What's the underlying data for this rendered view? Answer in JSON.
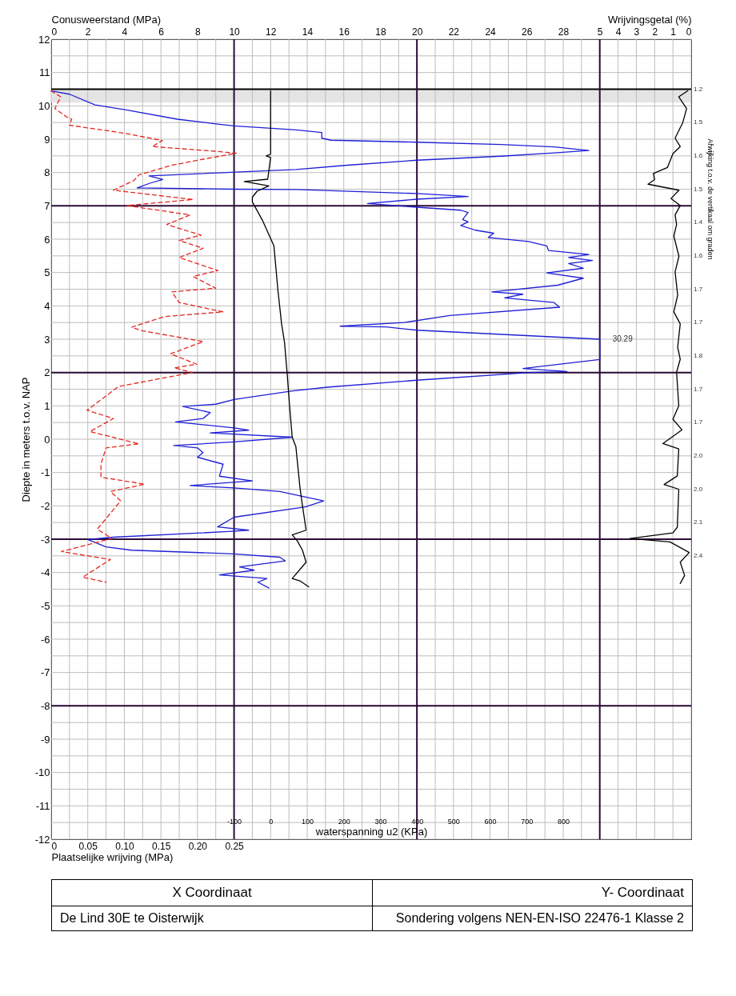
{
  "chart_data": [
    {
      "type": "line",
      "xlabel": "Conusweerstand (MPa)",
      "x2label": "Wrijvingsgetal (%)",
      "ylabel": "Diepte in meters t.o.v. NAP",
      "xlim": [
        0,
        35
      ],
      "xticks": [
        0,
        {
          "value": 1,
          "label": null
        },
        2,
        {
          "value": 3,
          "label": null
        },
        4,
        {
          "value": 5,
          "label": null
        },
        6,
        {
          "value": 7,
          "label": null
        },
        8,
        {
          "value": 9,
          "label": null
        },
        10,
        {
          "value": 11,
          "label": null
        },
        12,
        {
          "value": 13,
          "label": null
        },
        14,
        {
          "value": 15,
          "label": null
        },
        16,
        {
          "value": 17,
          "label": null
        },
        18,
        {
          "value": 19,
          "label": null
        },
        20,
        {
          "value": 21,
          "label": null
        },
        22,
        {
          "value": 23,
          "label": null
        },
        24,
        {
          "value": 25,
          "label": null
        },
        26,
        {
          "value": 27,
          "label": null
        },
        28,
        {
          "value": 29,
          "label": null
        },
        {
          "value": 30,
          "label": null
        },
        {
          "value": 31,
          "label": null
        },
        {
          "value": 32,
          "label": null
        },
        {
          "value": 33,
          "label": null
        },
        {
          "value": 34,
          "label": null
        },
        {
          "value": 35,
          "label": null
        }
      ],
      "x2lim": [
        35,
        0
      ],
      "x2ticks": [
        5,
        4,
        3,
        2,
        1,
        0
      ],
      "ylim": [
        -12,
        12
      ],
      "yticks": [
        12,
        {
          "value": 11.5,
          "label": null
        },
        11,
        {
          "value": 10.5,
          "label": null
        },
        10,
        {
          "value": 9.5,
          "label": null
        },
        9,
        {
          "value": 8.5,
          "label": null
        },
        8,
        {
          "value": 7.5,
          "label": null
        },
        7,
        {
          "value": 6.5,
          "label": null
        },
        6,
        {
          "value": 5.5,
          "label": null
        },
        5,
        {
          "value": 4.5,
          "label": null
        },
        4,
        {
          "value": 3.5,
          "label": null
        },
        3,
        {
          "value": 2.5,
          "label": null
        },
        2,
        {
          "value": 1.5,
          "label": null
        },
        1,
        {
          "value": 0.5,
          "label": null
        },
        0,
        {
          "value": -0.5,
          "label": null
        },
        -1,
        {
          "value": -1.5,
          "label": null
        },
        -2,
        {
          "value": -2.5,
          "label": null
        },
        -3,
        {
          "value": -3.5,
          "label": null
        },
        -4,
        {
          "value": -4.5,
          "label": null
        },
        -5,
        {
          "value": -5.5,
          "label": null
        },
        -6,
        {
          "value": -6.5,
          "label": null
        },
        -7,
        {
          "value": -7.5,
          "label": null
        },
        -8,
        {
          "value": -8.5,
          "label": null
        },
        -9,
        {
          "value": -9.5,
          "label": null
        },
        -10,
        {
          "value": -10.5,
          "label": null
        },
        -11,
        {
          "value": -11.5,
          "label": null
        },
        -12
      ],
      "grid": true,
      "series": [
        {
          "color": "#1f1fd6",
          "x": [
            0,
            1.0,
            2.4,
            4.1,
            6.9,
            9.0,
            10.0,
            13.4,
            14.8,
            14.8,
            15.3,
            20,
            24.6,
            27.5,
            29.4,
            27.5,
            24.6,
            20,
            16.2,
            13.4,
            5.35,
            6.1,
            5.4,
            4.7,
            10.0,
            13.4,
            20,
            22.8,
            20,
            17.3,
            20,
            22.4,
            22.8,
            22.5,
            22.8,
            22.4,
            23.2,
            24.2,
            23.9,
            26.1,
            27.1,
            27.2,
            29.4,
            28.3,
            29.6,
            28.3,
            29.1,
            27.1,
            29.1,
            27.7,
            24.1,
            25.8,
            24.8,
            27.5,
            27.8,
            21.8,
            19.3,
            15.8,
            18.3,
            20,
            30,
            30,
            25.8,
            28.2,
            26.2,
            20,
            15.1,
            13.2,
            10,
            9.0,
            7.2,
            8.7,
            8.3,
            6.8,
            10,
            10.8,
            8.7,
            13.2,
            10,
            6.7,
            8.0,
            8.3,
            8.0,
            9.4,
            9.2,
            11.0,
            7.6,
            10,
            12.5,
            14.9,
            13.9,
            10,
            9.1,
            10.8,
            9.7,
            3.4,
            2.0,
            3.0,
            4.4,
            10,
            12.5,
            12.8,
            10.3,
            11.1,
            9.2,
            11.8,
            11.3,
            11.9
          ],
          "values": [
            10.45,
            10.35,
            10.03,
            9.88,
            9.6,
            9.46,
            9.4,
            9.28,
            9.2,
            9.03,
            8.97,
            8.91,
            8.84,
            8.77,
            8.66,
            8.59,
            8.49,
            8.37,
            8.22,
            8.09,
            7.9,
            7.79,
            7.68,
            7.54,
            7.5,
            7.49,
            7.37,
            7.28,
            7.2,
            7.07,
            6.96,
            6.87,
            6.8,
            6.59,
            6.52,
            6.41,
            6.27,
            6.18,
            6.05,
            5.93,
            5.8,
            5.66,
            5.54,
            5.45,
            5.36,
            5.27,
            5.13,
            4.99,
            4.83,
            4.62,
            4.42,
            4.35,
            4.24,
            4.1,
            3.96,
            3.71,
            3.5,
            3.39,
            3.37,
            3.27,
            3.0,
            2.39,
            2.12,
            2.03,
            2.0,
            1.77,
            1.56,
            1.45,
            1.19,
            1.05,
            0.98,
            0.8,
            0.62,
            0.52,
            0.34,
            0.27,
            0.19,
            0.06,
            -0.08,
            -0.19,
            -0.26,
            -0.4,
            -0.54,
            -0.75,
            -1.11,
            -1.25,
            -1.39,
            -1.46,
            -1.57,
            -1.85,
            -2.03,
            -2.34,
            -2.63,
            -2.73,
            -2.77,
            -2.94,
            -3.01,
            -3.23,
            -3.33,
            -3.44,
            -3.54,
            -3.65,
            -3.83,
            -3.93,
            -4.07,
            -4.18,
            -4.29,
            -4.46
          ]
        },
        {
          "color": "#000000",
          "axis": "x2",
          "x": [
            0.19,
            0.68,
            0.25,
            0.46,
            0.88,
            0.6,
            1.0,
            1.3,
            2.07,
            2.0,
            2.36,
            0.67,
            1.1,
            0.6,
            0.88,
            0.8,
            0.95,
            0.67,
            0.88,
            0.74,
            0.95,
            0.6,
            0.74,
            0.6,
            0.8,
            0.68,
            1.0,
            0.5,
            1.55,
            0.68,
            0.76,
            1.48,
            0.68,
            0.76,
            1.0,
            3.35,
            1.16,
            0.11,
            0.6,
            0.36,
            0.6
          ],
          "values": [
            10.45,
            10.27,
            9.92,
            9.5,
            9.03,
            8.78,
            8.57,
            8.15,
            7.97,
            7.79,
            7.65,
            7.47,
            7.22,
            7.01,
            6.73,
            6.44,
            6.09,
            5.49,
            5.02,
            4.32,
            3.82,
            3.46,
            2.76,
            2.4,
            2.01,
            1.0,
            0.6,
            0.28,
            -0.13,
            -0.29,
            -1.1,
            -1.36,
            -1.5,
            -2.64,
            -2.81,
            -2.98,
            -3.08,
            -3.4,
            -3.69,
            -4.09,
            -4.33
          ]
        }
      ],
      "ref_lines": [
        {
          "axis": "y",
          "value": 10.5,
          "color": "#000000"
        },
        {
          "axis": "x",
          "value": 10,
          "color": "#2a0a33"
        },
        {
          "axis": "x",
          "value": 20,
          "color": "#2b0b35"
        },
        {
          "axis": "x",
          "value": 30,
          "color": "#290932"
        },
        {
          "axis": "y",
          "value": 7,
          "color": "#2c0c36"
        },
        {
          "axis": "y",
          "value": 2,
          "color": "#280831"
        },
        {
          "axis": "y",
          "value": -3,
          "color": "#2d0d37"
        },
        {
          "axis": "y",
          "value": -8,
          "color": "#270730"
        }
      ],
      "bands": [
        {
          "axis": "y",
          "from": 10.1,
          "to": 10.5,
          "color": "#e4e4e4"
        }
      ],
      "annotations": [
        "Afwijking t.o.v. de vertikaal om graden",
        "X Coordinaat",
        "Y- Coordinaat",
        "De Lind 30E te Oisterwijk",
        "Sondering volgens NEN-EN-ISO 22476-1 Klasse 2",
        "1.2",
        "1.5",
        "1.6",
        "1.5",
        "1.4",
        "1.6",
        "1.7",
        "1.7",
        "1.8",
        "1.7",
        "1.7",
        "2.0",
        "2.0",
        "2.1",
        "2.4",
        {
          "text": "30.29",
          "x": 30,
          "y": 3.0
        }
      ]
    },
    {
      "type": "line",
      "xlabel": "waterspanning u2 (KPa)",
      "xlim": [
        -600,
        1150
      ],
      "xticks": [
        -100,
        0,
        100,
        200,
        300,
        400,
        500,
        600,
        700,
        800
      ],
      "ylim": [
        -12,
        12
      ],
      "tick_labels": "x",
      "series": [
        {
          "color": "#000000",
          "x": [
            0,
            0,
            -12,
            0,
            -8,
            -72,
            -5,
            -37,
            -50,
            -50,
            -23,
            9,
            20,
            30,
            38,
            45,
            52,
            59,
            69,
            80,
            87,
            97,
            59,
            73,
            87,
            97,
            59,
            80,
            104
          ],
          "values": [
            10.45,
            8.55,
            8.5,
            8.45,
            7.8,
            7.73,
            7.6,
            7.44,
            7.26,
            7.12,
            6.58,
            5.8,
            4.46,
            3.46,
            2.9,
            2.0,
            0.98,
            0.06,
            -0.22,
            -1.43,
            -1.99,
            -2.73,
            -2.87,
            -3.05,
            -3.33,
            -3.69,
            -4.18,
            -4.25,
            -4.43
          ]
        }
      ]
    },
    {
      "type": "line",
      "xlabel": "Plaatselijke wrijving (MPa)",
      "xlim": [
        0,
        0.875
      ],
      "xticks": [
        0,
        0.05,
        {
          "value": 0.1,
          "label": "0.10"
        },
        0.15,
        {
          "value": 0.2,
          "label": "0.20"
        },
        0.25
      ],
      "ylim": [
        -12,
        12
      ],
      "tick_labels": "x",
      "series": [
        {
          "color": "#e5261f",
          "line_style": "dashed",
          "x": [
            0,
            0.013,
            0.005,
            0.021,
            0.028,
            0.025,
            0.103,
            0.152,
            0.138,
            0.223,
            0.253,
            0.215,
            0.165,
            0.12,
            0.113,
            0.085,
            0.194,
            0.103,
            0.19,
            0.158,
            0.205,
            0.175,
            0.208,
            0.175,
            0.228,
            0.194,
            0.225,
            0.165,
            0.175,
            0.235,
            0.155,
            0.11,
            0.125,
            0.208,
            0.163,
            0.199,
            0.168,
            0.193,
            0.092,
            0.049,
            0.085,
            0.053,
            0.12,
            0.075,
            0.068,
            0.068,
            0.128,
            0.081,
            0.095,
            0.063,
            0.083,
            0.014,
            0.081,
            0.043,
            0.075
          ],
          "values": [
            10.45,
            10.27,
            9.92,
            9.67,
            9.6,
            9.42,
            9.17,
            8.96,
            8.78,
            8.64,
            8.58,
            8.43,
            8.22,
            7.93,
            7.76,
            7.47,
            7.19,
            7.01,
            6.73,
            6.44,
            6.12,
            5.96,
            5.73,
            5.45,
            5.06,
            4.88,
            4.53,
            4.42,
            4.1,
            3.82,
            3.68,
            3.36,
            3.25,
            2.93,
            2.56,
            2.25,
            2.14,
            2.0,
            1.58,
            0.87,
            0.62,
            0.23,
            -0.14,
            -0.26,
            -0.75,
            -1.14,
            -1.35,
            -1.57,
            -1.85,
            -2.7,
            -2.98,
            -3.37,
            -3.61,
            -4.14,
            -4.29
          ]
        }
      ]
    }
  ]
}
